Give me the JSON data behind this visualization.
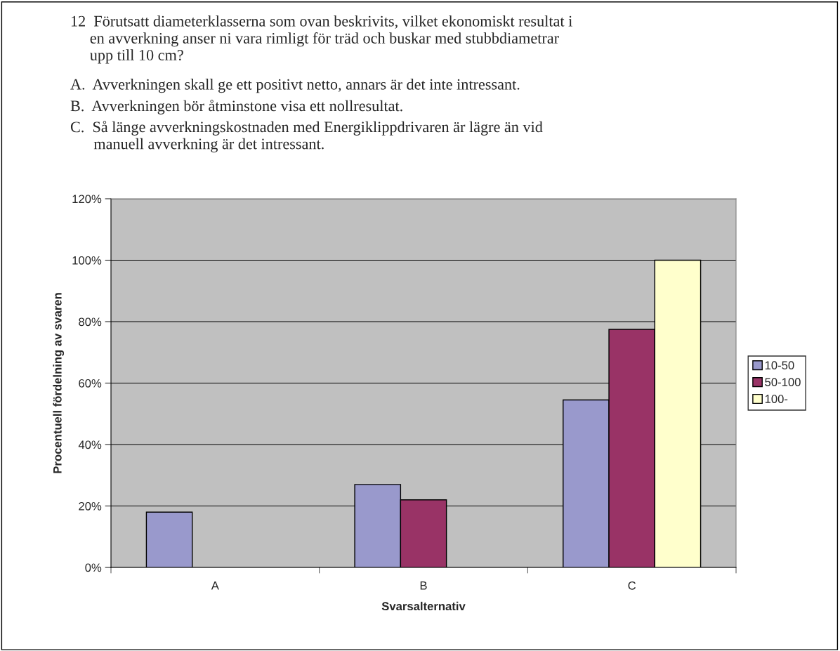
{
  "chart_data": {
    "type": "bar",
    "title": "12  Förutsatt diameterklasserna som ovan beskrivits, vilket ekonomiskt resultat i\n     en avverkning anser ni vara rimligt för träd och buskar med stubbdiametrar\n     upp till 10 cm?",
    "annotations": [
      "A.  Avverkningen skall ge ett positivt netto, annars är det inte intressant.",
      "B.  Avverkningen bör åtminstone visa ett nollresultat.",
      "C.  Så länge avverkningskostnaden med Energiklippdrivaren är lägre än vid\n      manuell avverkning är det intressant."
    ],
    "xlabel": "Svarsalternativ",
    "ylabel": "Procentuell fördelning av svaren",
    "categories": [
      "A",
      "B",
      "C"
    ],
    "series": [
      {
        "name": "10-50",
        "color": "#9999cc",
        "values": [
          18,
          27,
          54.5
        ]
      },
      {
        "name": "50-100",
        "color": "#993366",
        "values": [
          null,
          22,
          77.5
        ]
      },
      {
        "name": "100-",
        "color": "#ffffcc",
        "values": [
          null,
          null,
          100
        ]
      }
    ],
    "ylim": [
      0,
      120
    ],
    "yticks": [
      {
        "value": 0,
        "label": "0%"
      },
      {
        "value": 20,
        "label": "20%"
      },
      {
        "value": 40,
        "label": "40%"
      },
      {
        "value": 60,
        "label": "60%"
      },
      {
        "value": 80,
        "label": "80%"
      },
      {
        "value": 100,
        "label": "100%"
      },
      {
        "value": 120,
        "label": "120%"
      }
    ],
    "grid": "y",
    "legend": "right"
  }
}
